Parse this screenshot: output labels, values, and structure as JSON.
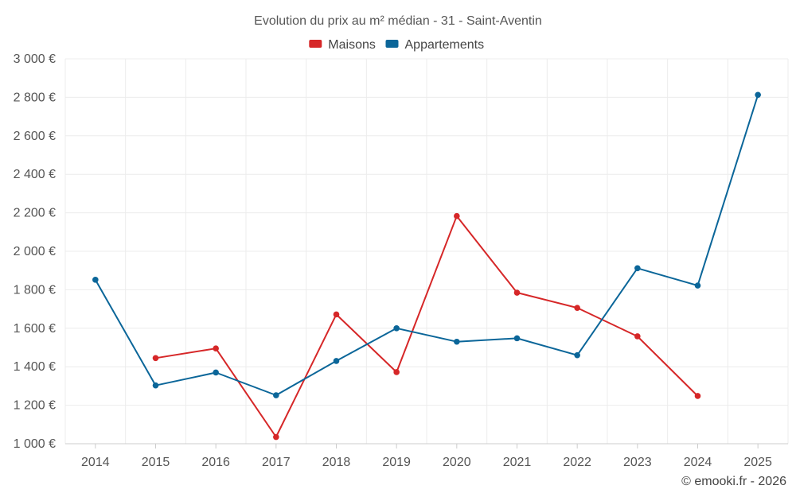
{
  "chart_data": {
    "type": "line",
    "title": "Evolution du prix au m² médian - 31 - Saint-Aventin",
    "categories": [
      "2014",
      "2015",
      "2016",
      "2017",
      "2018",
      "2019",
      "2020",
      "2021",
      "2022",
      "2023",
      "2024",
      "2025"
    ],
    "series": [
      {
        "name": "Maisons",
        "color": "#d62728",
        "values": [
          null,
          1445,
          1495,
          1035,
          1672,
          1372,
          2183,
          1785,
          1706,
          1558,
          1248,
          null
        ]
      },
      {
        "name": "Appartements",
        "color": "#0b6699",
        "values": [
          1852,
          1303,
          1370,
          1252,
          1430,
          1600,
          1530,
          1548,
          1460,
          1912,
          1822,
          2813
        ]
      }
    ],
    "ylim": [
      1000,
      3000
    ],
    "yticks": [
      1000,
      1200,
      1400,
      1600,
      1800,
      2000,
      2200,
      2400,
      2600,
      2800,
      3000
    ],
    "ytick_labels": [
      "1 000 €",
      "1 200 €",
      "1 400 €",
      "1 600 €",
      "1 800 €",
      "2 000 €",
      "2 200 €",
      "2 400 €",
      "2 600 €",
      "2 800 €",
      "3 000 €"
    ],
    "xlabel": "",
    "ylabel": "",
    "grid": true,
    "legend_position": "top-center"
  },
  "credit": "© emooki.fr - 2026"
}
